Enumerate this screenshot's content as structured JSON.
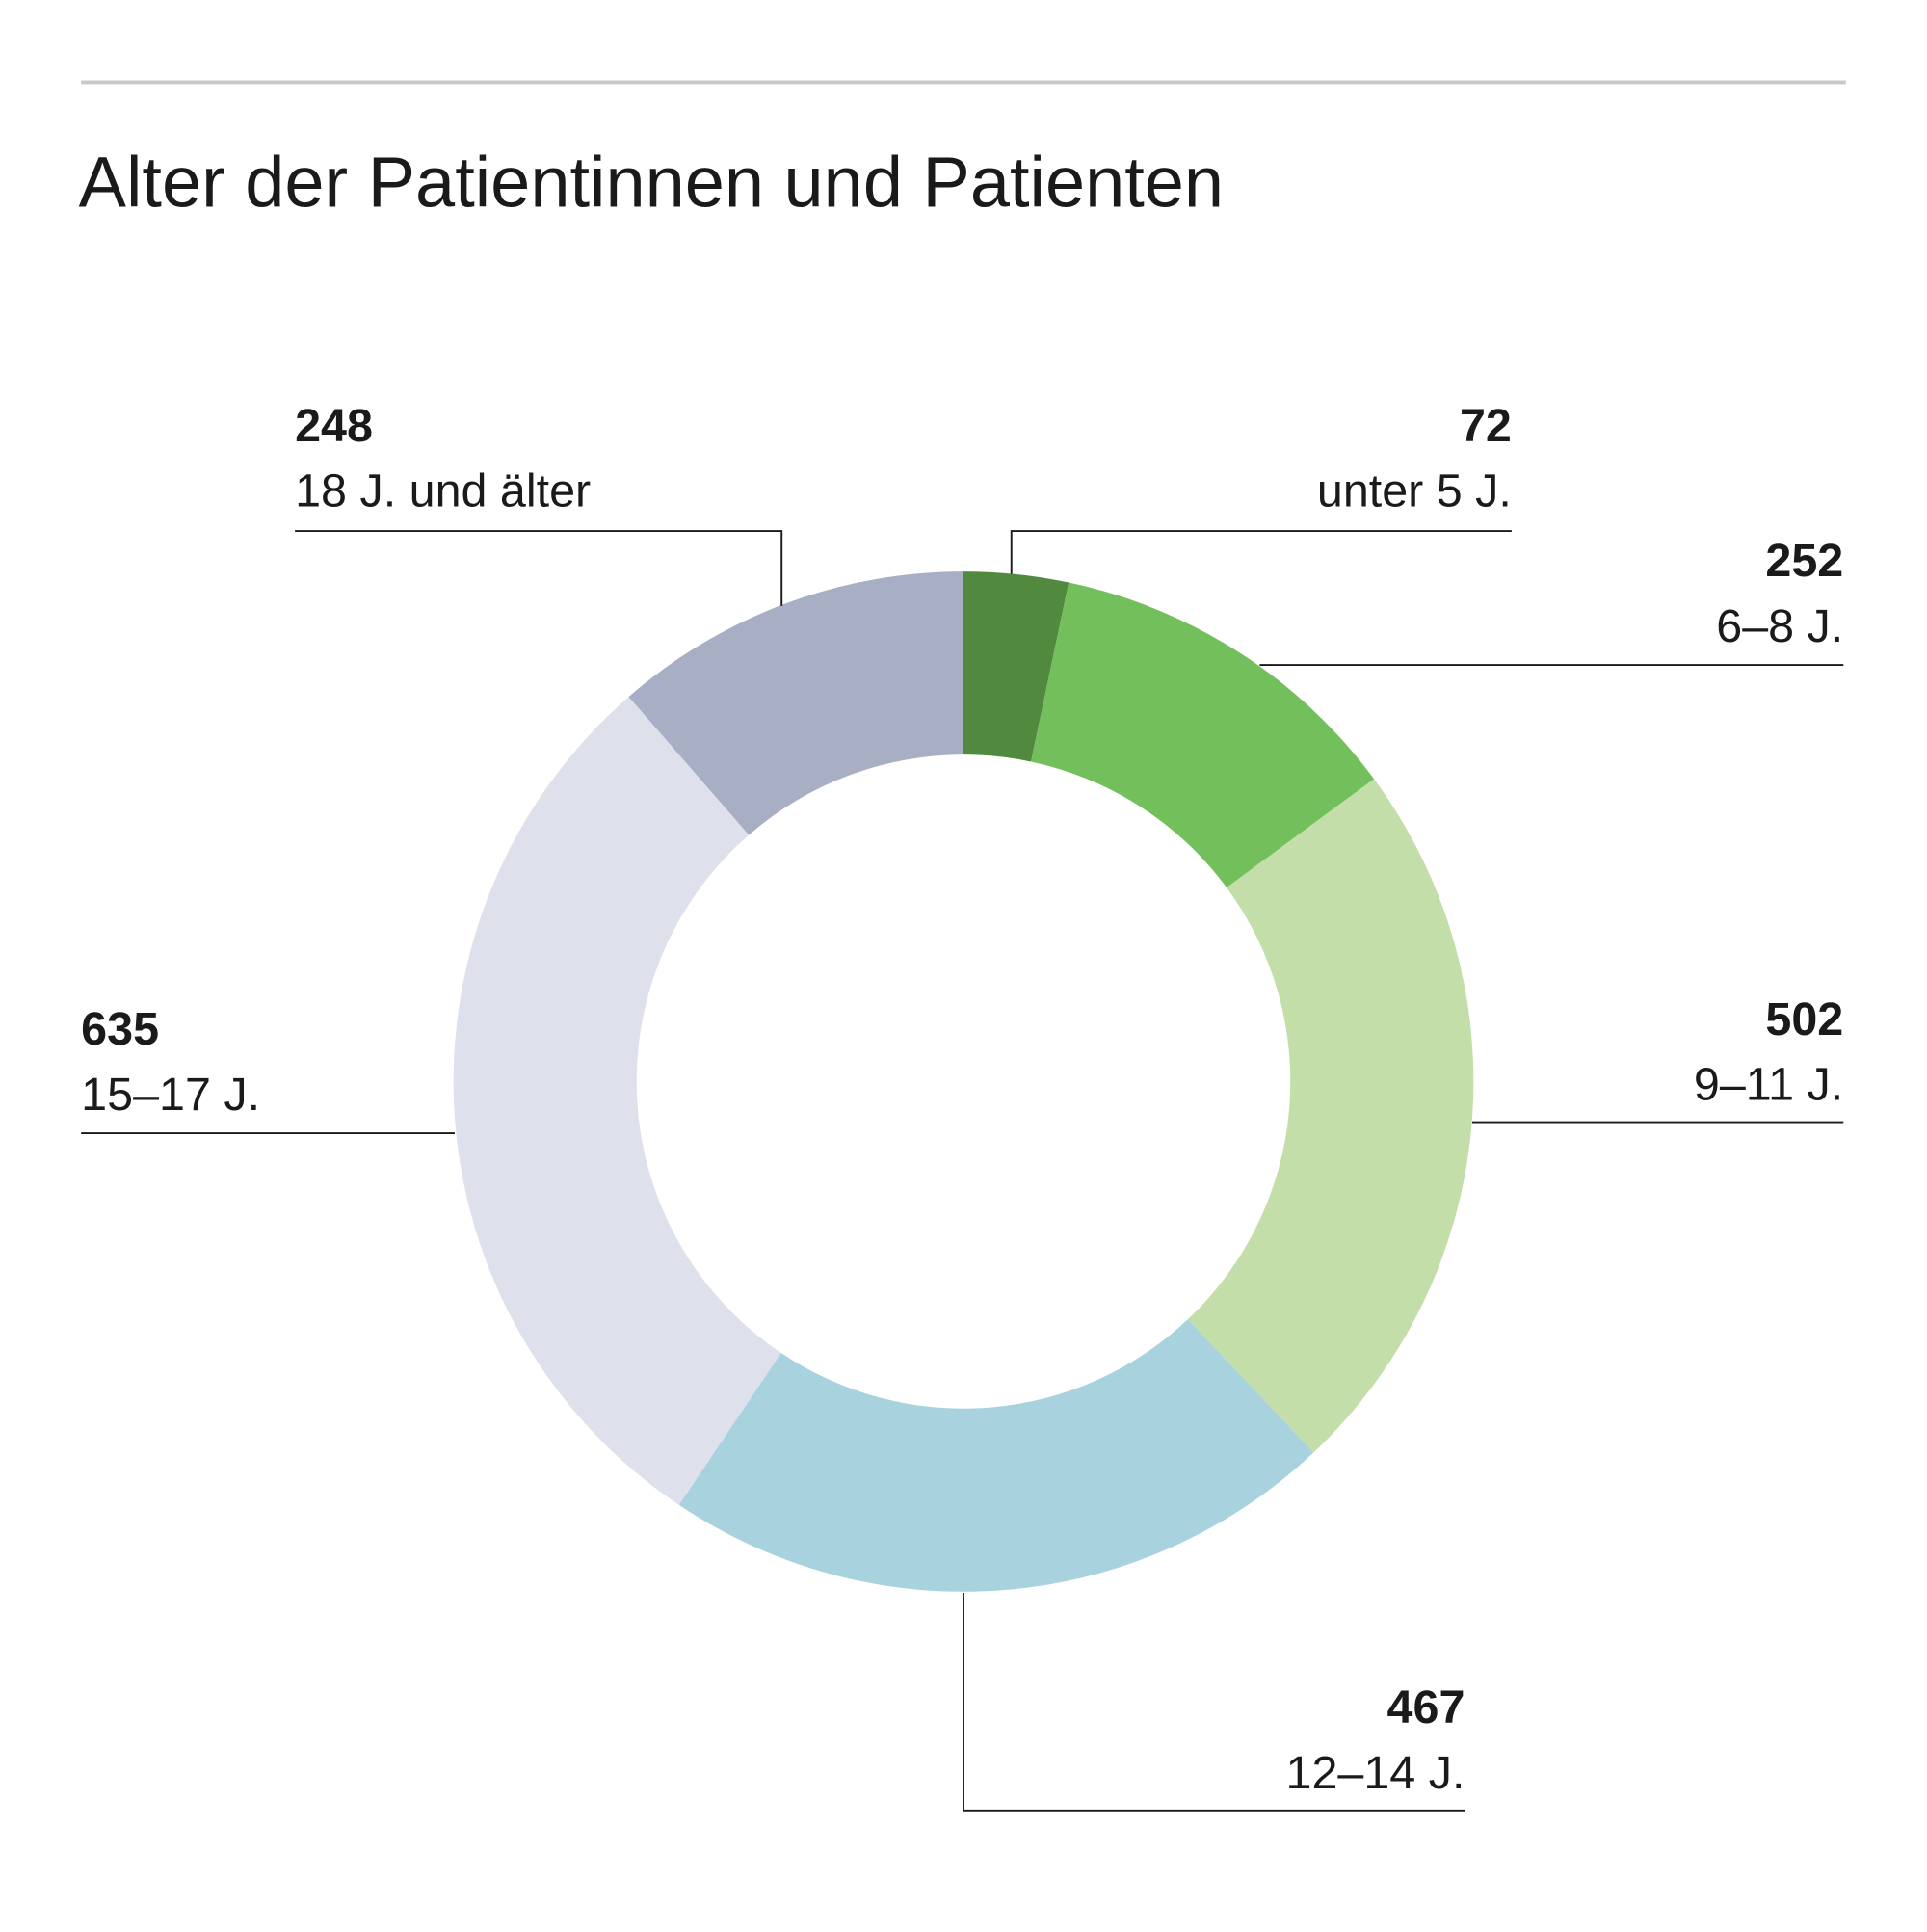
{
  "chart_data": {
    "type": "donut",
    "title": "Alter der Patientinnen und Patienten",
    "categories": [
      "unter 5 J.",
      "6–8 J.",
      "9–11 J.",
      "12–14 J.",
      "15–17 J.",
      "18 J. und älter"
    ],
    "values": [
      72,
      252,
      502,
      467,
      635,
      248
    ],
    "colors": [
      "#518a3f",
      "#72bf5c",
      "#c3dea8",
      "#a8d3de",
      "#dee0eb",
      "#a8aec3"
    ]
  }
}
